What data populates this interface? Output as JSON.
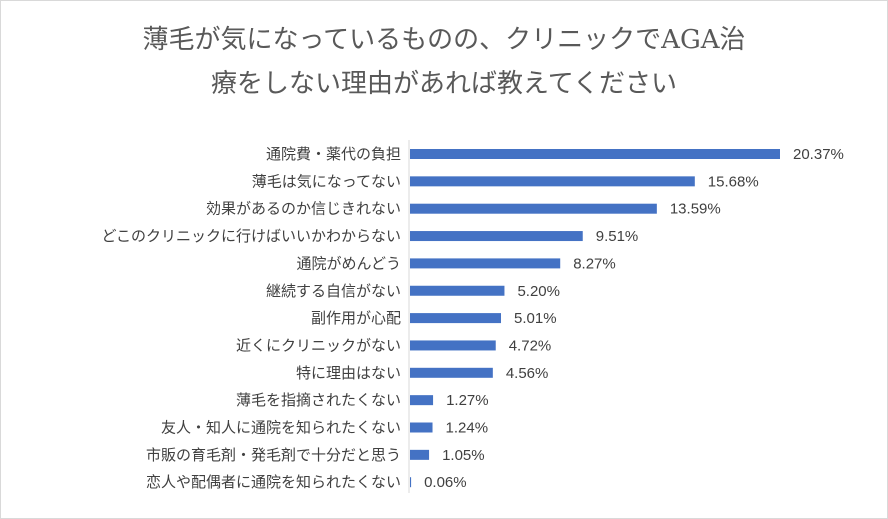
{
  "chart_data": {
    "type": "bar",
    "orientation": "horizontal",
    "title_lines": [
      "薄毛が気になっているものの、クリニックでAGA治",
      "療をしない理由があれば教えてください"
    ],
    "categories": [
      "通院費・薬代の負担",
      "薄毛は気になってない",
      "効果があるのか信じきれない",
      "どこのクリニックに行けばいいかわからない",
      "通院がめんどう",
      "継続する自信がない",
      "副作用が心配",
      "近くにクリニックがない",
      "特に理由はない",
      "薄毛を指摘されたくない",
      "友人・知人に通院を知られたくない",
      "市販の育毛剤・発毛剤で十分だと思う",
      "恋人や配偶者に通院を知られたくない"
    ],
    "values": [
      20.37,
      15.68,
      13.59,
      9.51,
      8.27,
      5.2,
      5.01,
      4.72,
      4.56,
      1.27,
      1.24,
      1.05,
      0.06
    ],
    "value_labels": [
      "20.37%",
      "15.68%",
      "13.59%",
      "9.51%",
      "8.27%",
      "5.20%",
      "5.01%",
      "4.72%",
      "4.56%",
      "1.27%",
      "1.24%",
      "1.05%",
      "0.06%"
    ],
    "xlim": [
      0,
      20.37
    ],
    "grid": false,
    "legend": "none",
    "bar_color": "#4472c4"
  }
}
